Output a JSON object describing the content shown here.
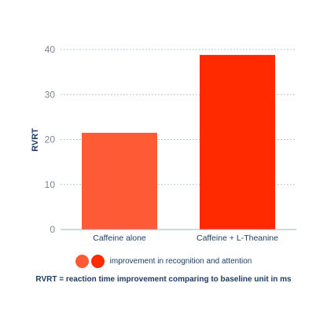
{
  "chart_data": {
    "type": "bar",
    "categories": [
      "Caffeine alone",
      "Caffeine + L-Theanine"
    ],
    "values": [
      21.5,
      38.8
    ],
    "ylabel": "RVRT",
    "xlabel": "",
    "ylim": [
      0,
      40
    ],
    "yticks": [
      0,
      10,
      20,
      30,
      40
    ],
    "grid": true,
    "legend": {
      "label": "improvement in recognition and attention",
      "placement": "bottom-center"
    },
    "annotation": "RVRT = reaction time improvement comparing to baseline unit in ms"
  },
  "colors": {
    "bars": [
      "#ff5a36",
      "#ff2a00"
    ],
    "grid": "#9fb4c9",
    "text": "#1f3d62",
    "tick": "#7b8794"
  }
}
